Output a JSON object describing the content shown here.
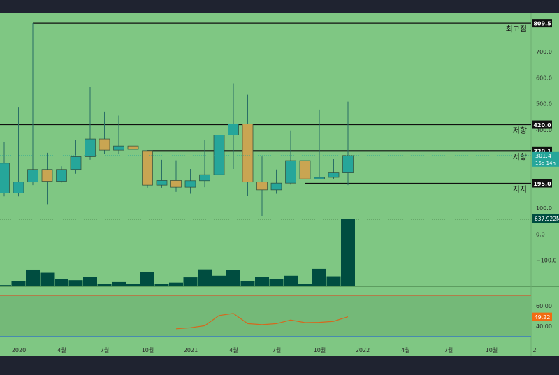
{
  "colors": {
    "frame": "#1f2330",
    "bg": "#7fc783",
    "bull": "#26a69a",
    "bear": "#c9a552",
    "wick": "#2a6e66",
    "volume": "#004d40",
    "rsi": "#d4691f",
    "rsi_badge": "#f26b11",
    "level_line": "#101010",
    "label_bg": "#101010",
    "price_badge": "#26a69a",
    "vol_badge": "#004d40",
    "text": "#2b2b2b"
  },
  "chart_data": {
    "type": "candlestick",
    "interval": "monthly",
    "price_axis": {
      "min": -200,
      "max": 850,
      "ticks": [
        {
          "value": 700,
          "label": "700.0"
        },
        {
          "value": 600,
          "label": "600.0"
        },
        {
          "value": 500,
          "label": "500.0"
        },
        {
          "value": 400,
          "label": "400.0"
        },
        {
          "value": 100,
          "label": "100.0"
        },
        {
          "value": 0,
          "label": "0.0"
        },
        {
          "value": -100,
          "label": "−100.0"
        }
      ]
    },
    "time_axis": {
      "first_month_index": 0,
      "labels": [
        {
          "month_index": 1,
          "label": "2020"
        },
        {
          "month_index": 4,
          "label": "4월"
        },
        {
          "month_index": 7,
          "label": "7월"
        },
        {
          "month_index": 10,
          "label": "10월"
        },
        {
          "month_index": 13,
          "label": "2021"
        },
        {
          "month_index": 16,
          "label": "4월"
        },
        {
          "month_index": 19,
          "label": "7월"
        },
        {
          "month_index": 22,
          "label": "10월"
        },
        {
          "month_index": 25,
          "label": "2022"
        },
        {
          "month_index": 28,
          "label": "4월"
        },
        {
          "month_index": 31,
          "label": "7월"
        },
        {
          "month_index": 34,
          "label": "10월"
        },
        {
          "month_index": 37,
          "label": "2"
        }
      ]
    },
    "candles": [
      {
        "i": 0,
        "o": 158,
        "h": 353,
        "l": 145,
        "c": 272
      },
      {
        "i": 1,
        "o": 158,
        "h": 488,
        "l": 145,
        "c": 200
      },
      {
        "i": 2,
        "o": 200,
        "h": 809.5,
        "l": 188,
        "c": 248
      },
      {
        "i": 3,
        "o": 248,
        "h": 312,
        "l": 115,
        "c": 203
      },
      {
        "i": 4,
        "o": 203,
        "h": 260,
        "l": 198,
        "c": 248
      },
      {
        "i": 5,
        "o": 248,
        "h": 362,
        "l": 232,
        "c": 297
      },
      {
        "i": 6,
        "o": 297,
        "h": 565,
        "l": 285,
        "c": 365
      },
      {
        "i": 7,
        "o": 365,
        "h": 470,
        "l": 308,
        "c": 322
      },
      {
        "i": 8,
        "o": 322,
        "h": 455,
        "l": 308,
        "c": 338
      },
      {
        "i": 9,
        "o": 338,
        "h": 345,
        "l": 248,
        "c": 325
      },
      {
        "i": 10,
        "o": 320,
        "h": 322,
        "l": 178,
        "c": 188
      },
      {
        "i": 11,
        "o": 188,
        "h": 285,
        "l": 178,
        "c": 206
      },
      {
        "i": 12,
        "o": 206,
        "h": 283,
        "l": 162,
        "c": 180
      },
      {
        "i": 13,
        "o": 180,
        "h": 250,
        "l": 155,
        "c": 205
      },
      {
        "i": 14,
        "o": 205,
        "h": 360,
        "l": 180,
        "c": 228
      },
      {
        "i": 15,
        "o": 228,
        "h": 382,
        "l": 225,
        "c": 380
      },
      {
        "i": 16,
        "o": 380,
        "h": 578,
        "l": 250,
        "c": 423
      },
      {
        "i": 17,
        "o": 423,
        "h": 535,
        "l": 148,
        "c": 200
      },
      {
        "i": 18,
        "o": 200,
        "h": 298,
        "l": 68,
        "c": 170
      },
      {
        "i": 19,
        "o": 170,
        "h": 248,
        "l": 155,
        "c": 196
      },
      {
        "i": 20,
        "o": 196,
        "h": 398,
        "l": 190,
        "c": 282
      },
      {
        "i": 21,
        "o": 282,
        "h": 328,
        "l": 195,
        "c": 212
      },
      {
        "i": 22,
        "o": 212,
        "h": 478,
        "l": 210,
        "c": 218
      },
      {
        "i": 23,
        "o": 218,
        "h": 290,
        "l": 212,
        "c": 235
      },
      {
        "i": 24,
        "o": 235,
        "h": 508,
        "l": 188,
        "c": 301.4
      }
    ],
    "volume_axis": {
      "unit_label": "637.922M"
    },
    "volume": [
      {
        "i": 0,
        "v": 12
      },
      {
        "i": 1,
        "v": 52
      },
      {
        "i": 2,
        "v": 158
      },
      {
        "i": 3,
        "v": 128
      },
      {
        "i": 4,
        "v": 72
      },
      {
        "i": 5,
        "v": 58
      },
      {
        "i": 6,
        "v": 88
      },
      {
        "i": 7,
        "v": 25
      },
      {
        "i": 8,
        "v": 40
      },
      {
        "i": 9,
        "v": 25
      },
      {
        "i": 10,
        "v": 135
      },
      {
        "i": 11,
        "v": 23
      },
      {
        "i": 12,
        "v": 35
      },
      {
        "i": 13,
        "v": 85
      },
      {
        "i": 14,
        "v": 160
      },
      {
        "i": 15,
        "v": 100
      },
      {
        "i": 16,
        "v": 155
      },
      {
        "i": 17,
        "v": 52
      },
      {
        "i": 18,
        "v": 92
      },
      {
        "i": 19,
        "v": 70
      },
      {
        "i": 20,
        "v": 100
      },
      {
        "i": 21,
        "v": 20
      },
      {
        "i": 22,
        "v": 165
      },
      {
        "i": 23,
        "v": 95
      },
      {
        "i": 24,
        "v": 637.922
      }
    ],
    "volume_max": 637.922,
    "rsi_axis": {
      "min": 25,
      "max": 75,
      "upper_band": 70,
      "lower_band": 30,
      "mid_line": 50,
      "ticks": [
        {
          "value": 60,
          "label": "60.00"
        },
        {
          "value": 40,
          "label": "40.00"
        }
      ]
    },
    "rsi": [
      {
        "i": 12,
        "v": 37.5
      },
      {
        "i": 13,
        "v": 38.5
      },
      {
        "i": 14,
        "v": 40.5
      },
      {
        "i": 15,
        "v": 50.5
      },
      {
        "i": 16,
        "v": 52.5
      },
      {
        "i": 17,
        "v": 42.5
      },
      {
        "i": 18,
        "v": 41.5
      },
      {
        "i": 19,
        "v": 42.5
      },
      {
        "i": 20,
        "v": 46
      },
      {
        "i": 21,
        "v": 43.5
      },
      {
        "i": 22,
        "v": 43.8
      },
      {
        "i": 23,
        "v": 44.8
      },
      {
        "i": 24,
        "v": 49.22
      }
    ],
    "levels": [
      {
        "value": 809.5,
        "label": "809.5",
        "annotation": "최고점",
        "from_index": 2
      },
      {
        "value": 420.0,
        "label": "420.0",
        "annotation": "저항",
        "from_index": -1
      },
      {
        "value": 320.1,
        "label": "320.1",
        "annotation": "저항",
        "from_index": 10
      },
      {
        "value": 195.0,
        "label": "195.0",
        "annotation": "지지",
        "from_index": 21
      }
    ],
    "current_price": {
      "value": 301.4,
      "label": "301.4",
      "countdown": "15d 14h"
    },
    "rsi_current": {
      "value": 49.22,
      "label": "49.22"
    }
  }
}
